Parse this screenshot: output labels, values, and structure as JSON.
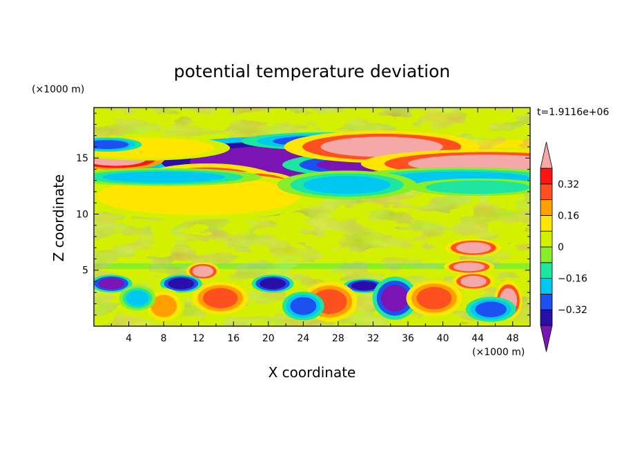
{
  "chart_data": {
    "type": "heatmap",
    "title": "potential temperature deviation",
    "xlabel": "X coordinate",
    "ylabel": "Z coordinate",
    "x_unit": "(×1000 m)",
    "y_unit": "(×1000 m)",
    "time_label": "t=1.9116e+06",
    "xlim": [
      0,
      50
    ],
    "ylim": [
      0,
      19.5
    ],
    "x_ticks": [
      4,
      8,
      12,
      16,
      20,
      24,
      28,
      32,
      36,
      40,
      44,
      48
    ],
    "y_ticks": [
      5,
      10,
      15
    ],
    "x_tick_labels": [
      "4",
      "8",
      "12",
      "16",
      "20",
      "24",
      "28",
      "32",
      "36",
      "40",
      "44",
      "48"
    ],
    "y_tick_labels": [
      "5",
      "10",
      "15"
    ],
    "colorbar": {
      "levels": [
        -0.4,
        -0.32,
        -0.24,
        -0.16,
        -0.08,
        0,
        0.08,
        0.16,
        0.24,
        0.32,
        0.4
      ],
      "tick_values": [
        0.32,
        0.16,
        0,
        -0.16,
        -0.32
      ],
      "tick_labels": [
        "0.32",
        "0.16",
        "0",
        "−0.16",
        "−0.32"
      ],
      "colors": [
        "#7a14b4",
        "#2a0ea8",
        "#1c50f0",
        "#00c8f0",
        "#1ee6a0",
        "#88ee2a",
        "#d2f000",
        "#ffe600",
        "#ffa000",
        "#ff5020",
        "#ff1414",
        "#f4a8a8"
      ],
      "extend": "both"
    },
    "features": [
      {
        "x": 22,
        "z": 14.7,
        "rx": 11,
        "rz": 1.4,
        "value": -0.5
      },
      {
        "x": 32,
        "z": 14.4,
        "rx": 6.5,
        "rz": 0.7,
        "value": -0.45
      },
      {
        "x": 26.5,
        "z": 16.5,
        "rx": 6,
        "rz": 0.5,
        "value": -0.3
      },
      {
        "x": 2.5,
        "z": 14.9,
        "rx": 3.5,
        "rz": 0.6,
        "value": 0.5
      },
      {
        "x": 33,
        "z": 16.0,
        "rx": 7,
        "rz": 0.9,
        "value": 0.45
      },
      {
        "x": 45,
        "z": 14.5,
        "rx": 9,
        "rz": 0.8,
        "value": 0.45
      },
      {
        "x": 13,
        "z": 12.6,
        "rx": 5.5,
        "rz": 1.2,
        "value": 0.35
      },
      {
        "x": 18.5,
        "z": 12.7,
        "rx": 3,
        "rz": 0.7,
        "value": 0.45
      },
      {
        "x": 12,
        "z": 11.6,
        "rx": 9,
        "rz": 1.3,
        "value": 0.12
      },
      {
        "x": 6,
        "z": 15.9,
        "rx": 6,
        "rz": 0.7,
        "value": 0.15
      },
      {
        "x": 1.5,
        "z": 16.2,
        "rx": 2.5,
        "rz": 0.4,
        "value": -0.3
      },
      {
        "x": 42,
        "z": 13.2,
        "rx": 8,
        "rz": 0.6,
        "value": -0.18
      },
      {
        "x": 8,
        "z": 13.3,
        "rx": 7,
        "rz": 0.5,
        "value": -0.2
      },
      {
        "x": 29,
        "z": 12.6,
        "rx": 5,
        "rz": 0.8,
        "value": -0.18
      },
      {
        "x": 44,
        "z": 12.4,
        "rx": 6,
        "rz": 0.6,
        "value": -0.1
      },
      {
        "x": 43.5,
        "z": 7.0,
        "rx": 2,
        "rz": 0.5,
        "value": 0.45
      },
      {
        "x": 43,
        "z": 5.3,
        "rx": 1.8,
        "rz": 0.4,
        "value": 0.4
      },
      {
        "x": 43.5,
        "z": 4.0,
        "rx": 1.5,
        "rz": 0.5,
        "value": 0.45
      },
      {
        "x": 12.5,
        "z": 4.9,
        "rx": 1.2,
        "rz": 0.5,
        "value": 0.4
      },
      {
        "x": 2,
        "z": 3.8,
        "rx": 1.5,
        "rz": 0.5,
        "value": -0.45
      },
      {
        "x": 10,
        "z": 3.8,
        "rx": 1.5,
        "rz": 0.5,
        "value": -0.4
      },
      {
        "x": 20.5,
        "z": 3.8,
        "rx": 1.5,
        "rz": 0.5,
        "value": -0.4
      },
      {
        "x": 31,
        "z": 3.6,
        "rx": 1.5,
        "rz": 0.4,
        "value": -0.4
      },
      {
        "x": 34.5,
        "z": 2.5,
        "rx": 1.6,
        "rz": 1.2,
        "value": -0.45
      },
      {
        "x": 14.5,
        "z": 2.5,
        "rx": 2,
        "rz": 0.9,
        "value": 0.3
      },
      {
        "x": 27,
        "z": 2.2,
        "rx": 2,
        "rz": 1.1,
        "value": 0.3
      },
      {
        "x": 39,
        "z": 2.5,
        "rx": 2,
        "rz": 1.0,
        "value": 0.3
      },
      {
        "x": 47.5,
        "z": 2.3,
        "rx": 1.0,
        "rz": 1.1,
        "value": 0.45
      },
      {
        "x": 24,
        "z": 1.8,
        "rx": 1.5,
        "rz": 0.8,
        "value": -0.3
      },
      {
        "x": 45.5,
        "z": 1.5,
        "rx": 1.8,
        "rz": 0.7,
        "value": -0.3
      },
      {
        "x": 8,
        "z": 1.8,
        "rx": 1.5,
        "rz": 1.0,
        "value": 0.2
      },
      {
        "x": 5,
        "z": 2.5,
        "rx": 1.3,
        "rz": 0.7,
        "value": -0.2
      }
    ]
  }
}
